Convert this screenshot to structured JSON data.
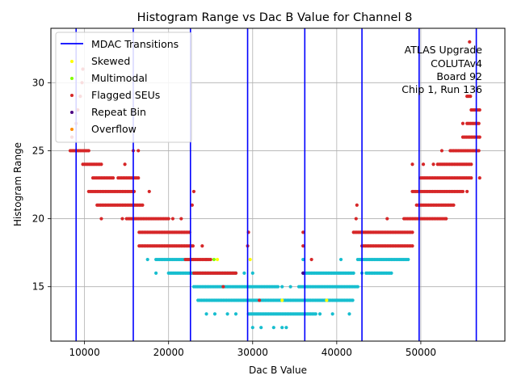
{
  "chart_data": {
    "type": "scatter",
    "title": "Histogram Range vs Dac B Value for Channel 8",
    "xlabel": "Dac B Value",
    "ylabel": "Histogram Range",
    "xlim": [
      6000,
      60000
    ],
    "ylim": [
      11,
      34
    ],
    "x_ticks": [
      10000,
      20000,
      30000,
      40000,
      50000
    ],
    "x_tick_labels": [
      "10000",
      "20000",
      "30000",
      "40000",
      "50000"
    ],
    "y_ticks": [
      15,
      20,
      25,
      30
    ],
    "y_tick_labels": [
      "15",
      "20",
      "25",
      "30"
    ],
    "grid": true,
    "legend_position": "top-left",
    "annotation": [
      "ATLAS Upgrade",
      "COLUTAv4",
      "Board 92",
      "Chip 1, Run 136"
    ],
    "mdac_transitions": [
      9000,
      15800,
      22600,
      29400,
      36200,
      43000,
      49800,
      56600
    ],
    "legend": [
      {
        "label": "MDAC Transitions",
        "kind": "line",
        "color": "#0000ff"
      },
      {
        "label": "Skewed",
        "kind": "dot",
        "color": "#ffff00"
      },
      {
        "label": "Multimodal",
        "kind": "dot",
        "color": "#7fff00"
      },
      {
        "label": "Flagged SEUs",
        "kind": "dot",
        "color": "#d62728"
      },
      {
        "label": "Repeat Bin",
        "kind": "dot",
        "color": "#4b0082"
      },
      {
        "label": "Overflow",
        "kind": "dot",
        "color": "#ff8c00"
      }
    ],
    "normal_color": "#17becf",
    "series": [
      {
        "name": "Flagged SEUs",
        "color": "#d62728",
        "bands": [
          {
            "y": 25,
            "x": [
              8300,
              10500
            ]
          },
          {
            "y": 24,
            "x": [
              9800,
              12000
            ]
          },
          {
            "y": 23,
            "x": [
              11000,
              13500
            ]
          },
          {
            "y": 23,
            "x": [
              14000,
              16500
            ]
          },
          {
            "y": 22,
            "x": [
              10500,
              16000
            ]
          },
          {
            "y": 21,
            "x": [
              11500,
              17000
            ]
          },
          {
            "y": 20,
            "x": [
              15000,
              20000
            ]
          },
          {
            "y": 19,
            "x": [
              16500,
              22500
            ]
          },
          {
            "y": 18,
            "x": [
              16500,
              23000
            ]
          },
          {
            "y": 17,
            "x": [
              22000,
              25000
            ]
          },
          {
            "y": 16,
            "x": [
              23000,
              28000
            ]
          },
          {
            "y": 19,
            "x": [
              42000,
              49000
            ]
          },
          {
            "y": 18,
            "x": [
              43000,
              49000
            ]
          },
          {
            "y": 20,
            "x": [
              48000,
              53000
            ]
          },
          {
            "y": 21,
            "x": [
              49500,
              54000
            ]
          },
          {
            "y": 22,
            "x": [
              49000,
              55000
            ]
          },
          {
            "y": 23,
            "x": [
              50000,
              56000
            ]
          },
          {
            "y": 24,
            "x": [
              52000,
              56000
            ]
          },
          {
            "y": 25,
            "x": [
              53500,
              57000
            ]
          },
          {
            "y": 26,
            "x": [
              55000,
              57000
            ]
          },
          {
            "y": 27,
            "x": [
              55500,
              57000
            ]
          },
          {
            "y": 28,
            "x": [
              56000,
              57000
            ]
          },
          {
            "y": 29,
            "x": [
              55500,
              56000
            ]
          }
        ],
        "sparse": [
          {
            "x": 8500,
            "y": 26
          },
          {
            "x": 9000,
            "y": 27
          },
          {
            "x": 9800,
            "y": 31
          },
          {
            "x": 9500,
            "y": 29
          },
          {
            "x": 9200,
            "y": 28
          },
          {
            "x": 9700,
            "y": 30
          },
          {
            "x": 14800,
            "y": 24
          },
          {
            "x": 15800,
            "y": 25
          },
          {
            "x": 16400,
            "y": 25
          },
          {
            "x": 17700,
            "y": 22
          },
          {
            "x": 12000,
            "y": 20
          },
          {
            "x": 14500,
            "y": 20
          },
          {
            "x": 20500,
            "y": 20
          },
          {
            "x": 21500,
            "y": 20
          },
          {
            "x": 22800,
            "y": 21
          },
          {
            "x": 23000,
            "y": 22
          },
          {
            "x": 24000,
            "y": 18
          },
          {
            "x": 29500,
            "y": 19
          },
          {
            "x": 29400,
            "y": 18
          },
          {
            "x": 36000,
            "y": 19
          },
          {
            "x": 36000,
            "y": 18
          },
          {
            "x": 37000,
            "y": 17
          },
          {
            "x": 42400,
            "y": 21
          },
          {
            "x": 42300,
            "y": 20
          },
          {
            "x": 46000,
            "y": 20
          },
          {
            "x": 49000,
            "y": 24
          },
          {
            "x": 50300,
            "y": 24
          },
          {
            "x": 51500,
            "y": 24
          },
          {
            "x": 52500,
            "y": 25
          },
          {
            "x": 53000,
            "y": 20
          },
          {
            "x": 55000,
            "y": 27
          },
          {
            "x": 55800,
            "y": 33
          },
          {
            "x": 57000,
            "y": 23
          },
          {
            "x": 55500,
            "y": 22
          },
          {
            "x": 30800,
            "y": 14
          },
          {
            "x": 26500,
            "y": 15
          }
        ]
      },
      {
        "name": "Normal",
        "color": "#17becf",
        "bands": [
          {
            "y": 17,
            "x": [
              18500,
              23000
            ]
          },
          {
            "y": 16,
            "x": [
              20000,
              28000
            ]
          },
          {
            "y": 15,
            "x": [
              23000,
              33000
            ]
          },
          {
            "y": 15,
            "x": [
              35500,
              42500
            ]
          },
          {
            "y": 14,
            "x": [
              23500,
              42000
            ]
          },
          {
            "y": 13,
            "x": [
              29500,
              37500
            ]
          },
          {
            "y": 16,
            "x": [
              36000,
              42000
            ]
          },
          {
            "y": 17,
            "x": [
              42500,
              48500
            ]
          },
          {
            "y": 16,
            "x": [
              43500,
              46500
            ]
          }
        ],
        "sparse": [
          {
            "x": 24500,
            "y": 13
          },
          {
            "x": 25500,
            "y": 13
          },
          {
            "x": 27000,
            "y": 13
          },
          {
            "x": 28000,
            "y": 13
          },
          {
            "x": 30000,
            "y": 12
          },
          {
            "x": 31000,
            "y": 12
          },
          {
            "x": 32500,
            "y": 12
          },
          {
            "x": 33500,
            "y": 12
          },
          {
            "x": 34000,
            "y": 12
          },
          {
            "x": 38000,
            "y": 13
          },
          {
            "x": 39500,
            "y": 13
          },
          {
            "x": 41500,
            "y": 13
          },
          {
            "x": 17500,
            "y": 17
          },
          {
            "x": 18500,
            "y": 16
          },
          {
            "x": 24500,
            "y": 17
          },
          {
            "x": 29000,
            "y": 16
          },
          {
            "x": 40500,
            "y": 17
          },
          {
            "x": 33500,
            "y": 15
          },
          {
            "x": 34500,
            "y": 15
          },
          {
            "x": 36000,
            "y": 17
          },
          {
            "x": 43000,
            "y": 16
          },
          {
            "x": 30000,
            "y": 16
          }
        ]
      },
      {
        "name": "Skewed",
        "color": "#ffff00",
        "points": [
          {
            "x": 25800,
            "y": 17
          },
          {
            "x": 29700,
            "y": 17
          },
          {
            "x": 33500,
            "y": 14
          },
          {
            "x": 38800,
            "y": 14
          }
        ]
      },
      {
        "name": "Multimodal",
        "color": "#7fff00",
        "points": [
          {
            "x": 25400,
            "y": 17
          }
        ]
      },
      {
        "name": "Repeat Bin",
        "color": "#4b0082",
        "points": [
          {
            "x": 36000,
            "y": 16
          }
        ]
      }
    ]
  }
}
